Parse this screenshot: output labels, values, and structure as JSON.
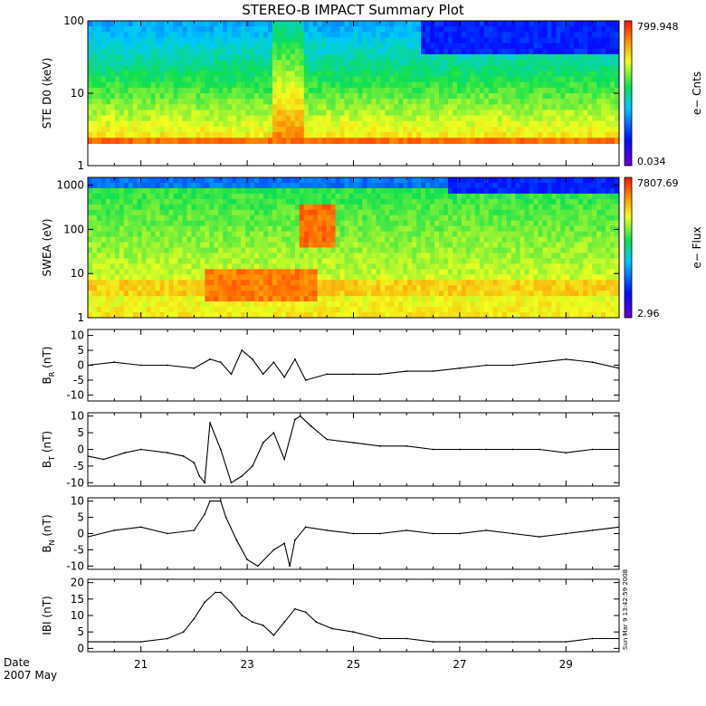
{
  "title": "STEREO-B IMPACT Summary Plot",
  "footer": {
    "date_label": "Date",
    "date_value": "2007 May",
    "timestamp": "Sun Mar  9 13:42:59 2008"
  },
  "x_axis": {
    "tick_labels": [
      "21",
      "23",
      "25",
      "27",
      "29"
    ],
    "tick_days": [
      21,
      23,
      25,
      27,
      29
    ],
    "xlim_days": [
      20.0,
      30.0
    ]
  },
  "chart_data": [
    {
      "type": "heatmap",
      "ylabel": "STE D0 (keV)",
      "yscale": "log",
      "ylim": [
        1,
        100
      ],
      "y_ticks": [
        "1",
        "10",
        "100"
      ],
      "colorbar": {
        "label": "e− Cnts",
        "max": "799.948",
        "min": "0.034"
      }
    },
    {
      "type": "heatmap",
      "ylabel": "SWEA (eV)",
      "yscale": "log",
      "ylim": [
        1,
        1500
      ],
      "y_ticks": [
        "1",
        "10",
        "100",
        "1000"
      ],
      "colorbar": {
        "label": "e− Flux",
        "max": "7807.69",
        "min": "2.96"
      }
    },
    {
      "type": "line",
      "ylabel": "B_R (nT)",
      "ylabel_main": "B",
      "ylabel_sub": "R",
      "ylabel_unit": "(nT)",
      "ylim": [
        -12,
        12
      ],
      "y_ticks": [
        "-10",
        "-5",
        "0",
        "5",
        "10"
      ],
      "x": [
        20.0,
        20.5,
        21.0,
        21.5,
        22.0,
        22.3,
        22.5,
        22.7,
        22.9,
        23.1,
        23.3,
        23.5,
        23.7,
        23.9,
        24.1,
        24.5,
        25.0,
        25.5,
        26.0,
        26.5,
        27.0,
        27.5,
        28.0,
        28.5,
        29.0,
        29.5,
        30.0
      ],
      "values": [
        0,
        1,
        0,
        0,
        -1,
        2,
        1,
        -3,
        5,
        2,
        -3,
        1,
        -4,
        2,
        -5,
        -3,
        -3,
        -3,
        -2,
        -2,
        -1,
        0,
        0,
        1,
        2,
        1,
        -1
      ]
    },
    {
      "type": "line",
      "ylabel": "B_T (nT)",
      "ylabel_main": "B",
      "ylabel_sub": "T",
      "ylabel_unit": "(nT)",
      "ylim": [
        -11,
        11
      ],
      "y_ticks": [
        "-10",
        "-5",
        "0",
        "5",
        "10"
      ],
      "x": [
        20.0,
        20.3,
        20.7,
        21.0,
        21.5,
        21.8,
        22.0,
        22.1,
        22.2,
        22.3,
        22.5,
        22.7,
        22.9,
        23.1,
        23.3,
        23.5,
        23.7,
        23.9,
        24.0,
        24.2,
        24.5,
        25.0,
        25.5,
        26.0,
        26.5,
        27.0,
        27.5,
        28.0,
        28.5,
        29.0,
        29.5,
        30.0
      ],
      "values": [
        -2,
        -3,
        -1,
        0,
        -1,
        -2,
        -4,
        -8,
        -10,
        8,
        0,
        -10,
        -8,
        -5,
        2,
        5,
        -3,
        9,
        10,
        7,
        3,
        2,
        1,
        1,
        0,
        0,
        0,
        0,
        0,
        -1,
        0,
        0
      ]
    },
    {
      "type": "line",
      "ylabel": "B_N (nT)",
      "ylabel_main": "B",
      "ylabel_sub": "N",
      "ylabel_unit": "(nT)",
      "ylim": [
        -11,
        11
      ],
      "y_ticks": [
        "-10",
        "-5",
        "0",
        "5",
        "10"
      ],
      "x": [
        20.0,
        20.5,
        21.0,
        21.5,
        22.0,
        22.2,
        22.3,
        22.5,
        22.6,
        22.8,
        23.0,
        23.2,
        23.5,
        23.7,
        23.8,
        23.9,
        24.1,
        24.5,
        25.0,
        25.5,
        26.0,
        26.5,
        27.0,
        27.5,
        28.0,
        28.5,
        29.0,
        29.5,
        30.0
      ],
      "values": [
        -1,
        1,
        2,
        0,
        1,
        6,
        10,
        10,
        5,
        -2,
        -8,
        -10,
        -5,
        -3,
        -10,
        -2,
        2,
        1,
        0,
        0,
        1,
        0,
        0,
        1,
        0,
        -1,
        0,
        1,
        2
      ]
    },
    {
      "type": "line",
      "ylabel": "|B| (nT)",
      "ylabel_main": "IBI",
      "ylabel_sub": "",
      "ylabel_unit": "(nT)",
      "ylim": [
        -1,
        21
      ],
      "y_ticks": [
        "0",
        "5",
        "10",
        "15",
        "20"
      ],
      "x": [
        20.0,
        20.5,
        21.0,
        21.5,
        21.8,
        22.0,
        22.2,
        22.4,
        22.5,
        22.7,
        22.9,
        23.1,
        23.3,
        23.5,
        23.7,
        23.9,
        24.1,
        24.3,
        24.6,
        25.0,
        25.5,
        26.0,
        26.5,
        27.0,
        27.5,
        28.0,
        28.5,
        29.0,
        29.5,
        30.0
      ],
      "values": [
        2,
        2,
        2,
        3,
        5,
        9,
        14,
        17,
        17,
        14,
        10,
        8,
        7,
        4,
        8,
        12,
        11,
        8,
        6,
        5,
        3,
        3,
        2,
        2,
        2,
        2,
        2,
        2,
        3,
        3
      ]
    }
  ]
}
